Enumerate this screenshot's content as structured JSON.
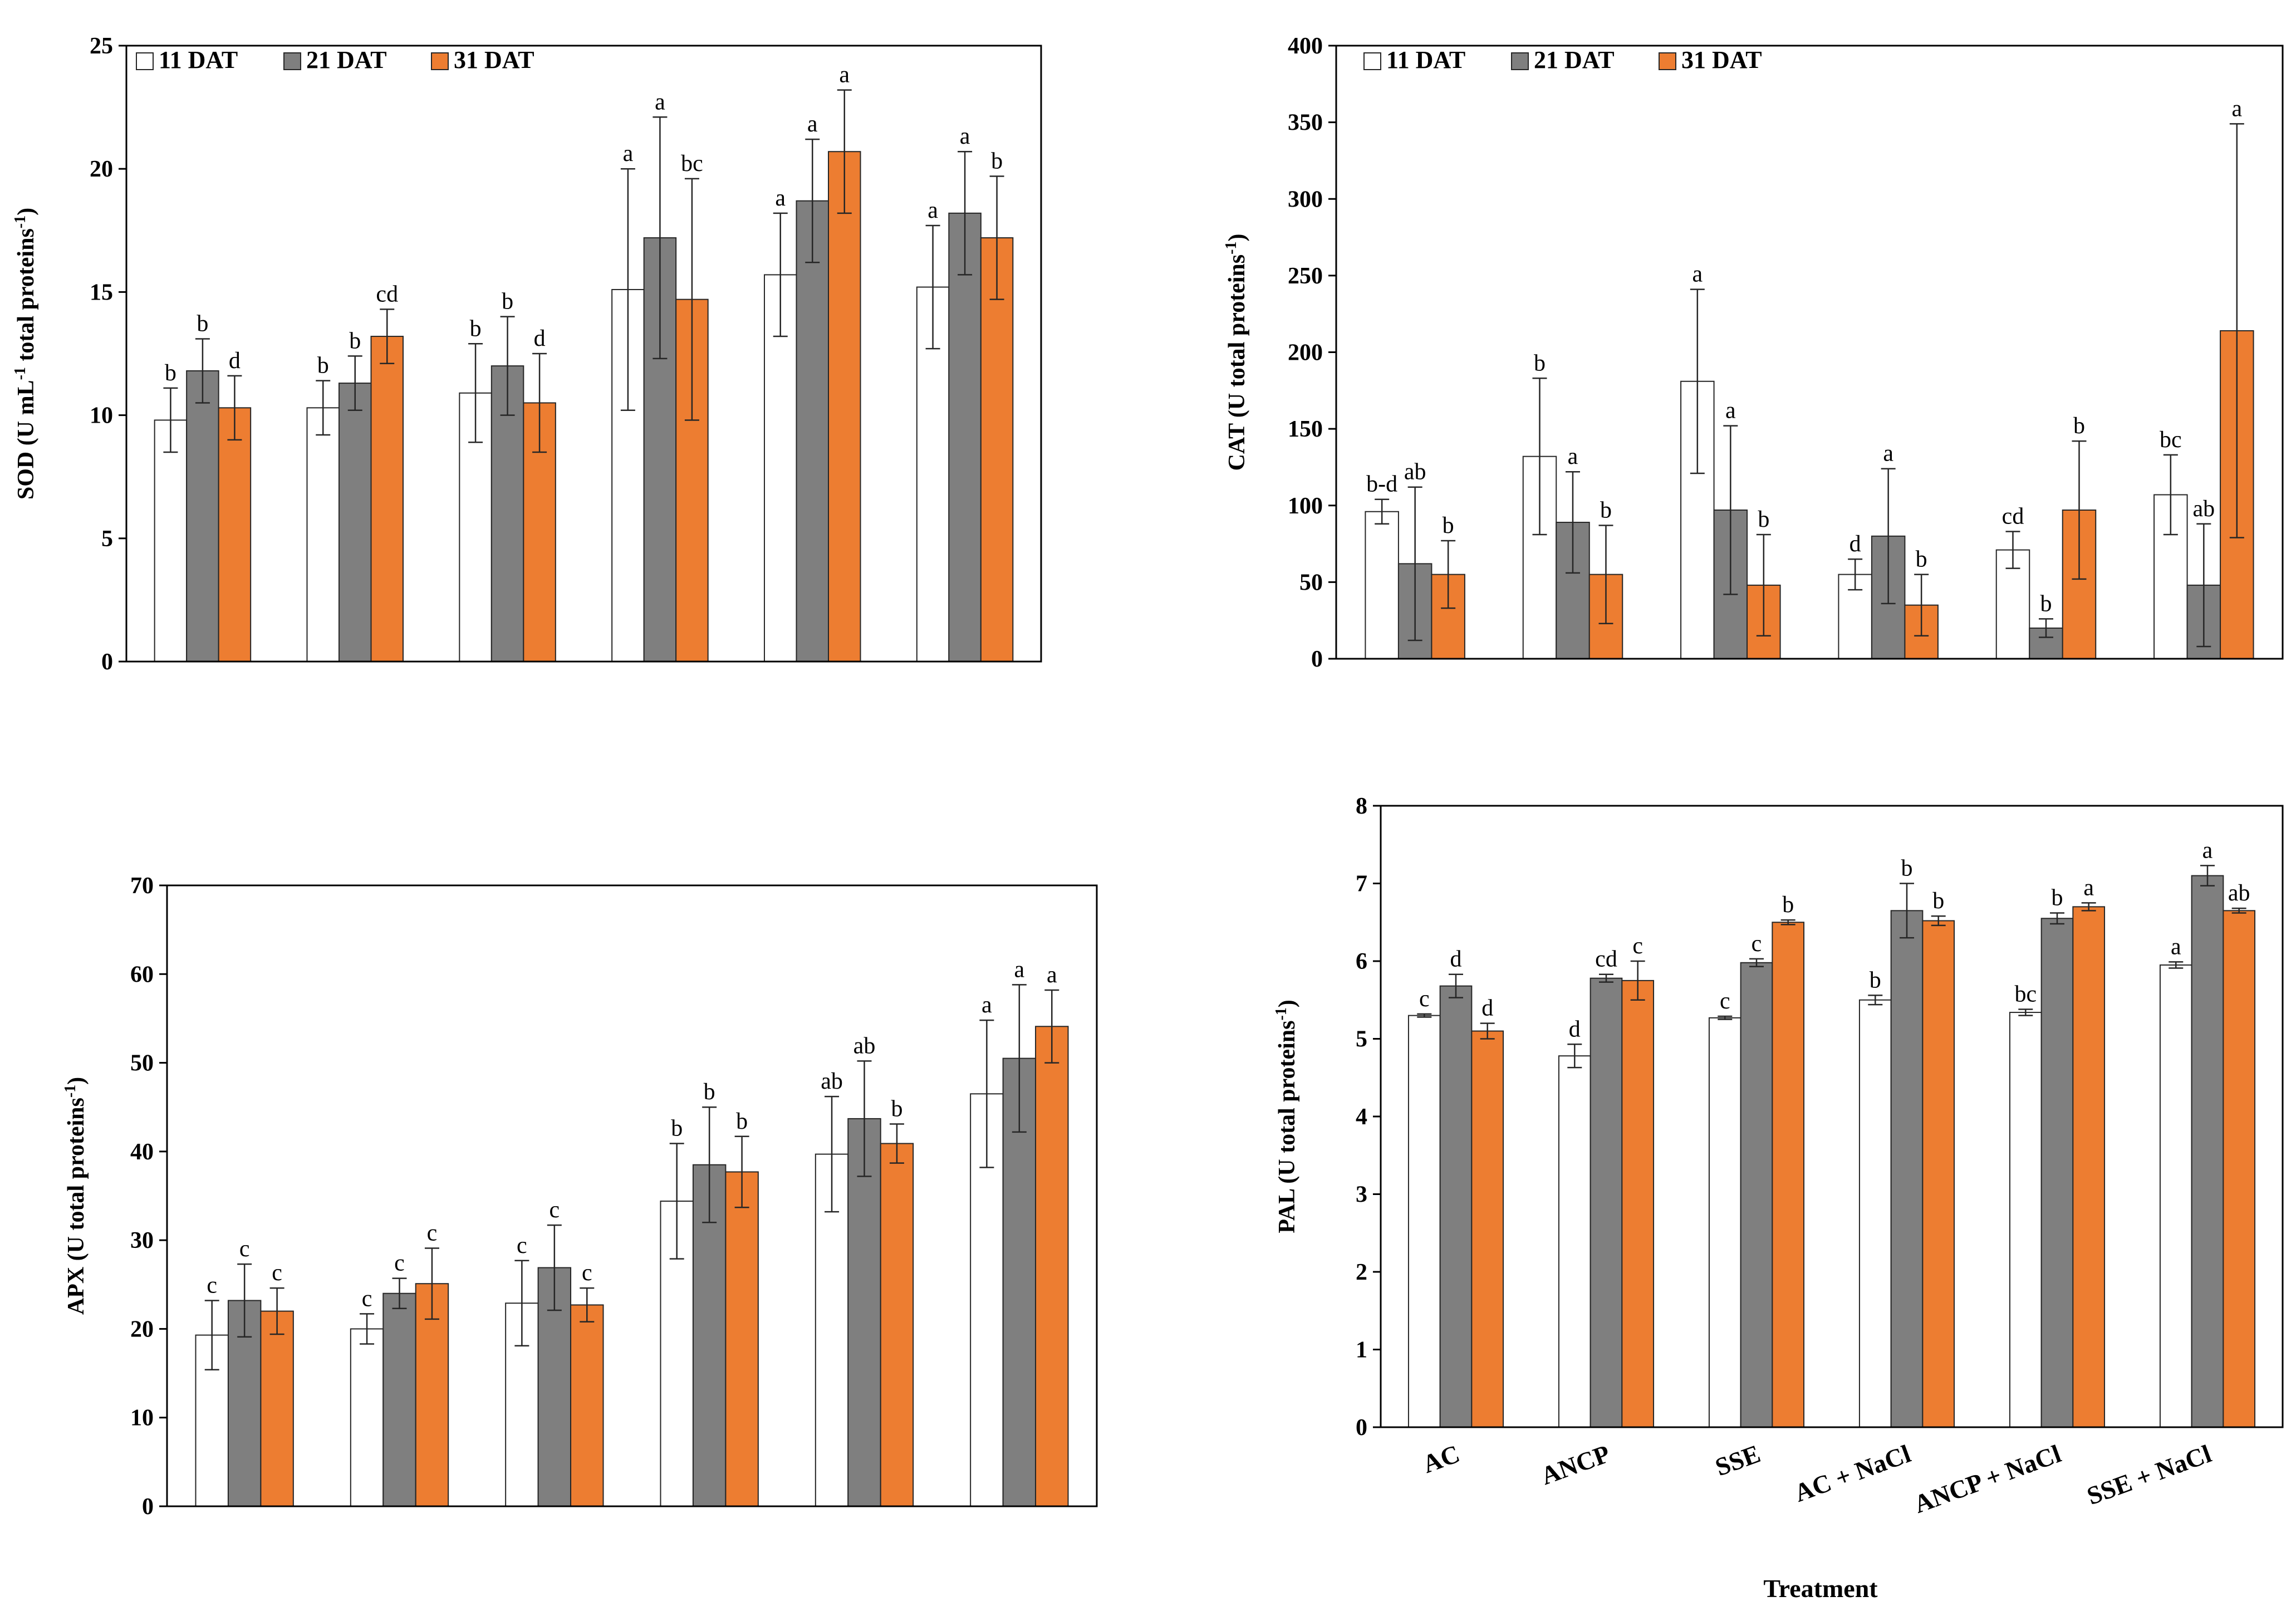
{
  "colors": {
    "s11": "#ffffff",
    "s21": "#7f7f7f",
    "s31": "#ed7d31",
    "axis": "#000000",
    "edge": "#262626"
  },
  "x_title": "Treatment",
  "categories": [
    "AC",
    "ANCP",
    "SSE",
    "AC + NaCl",
    "ANCP + NaCl",
    "SSE + NaCl"
  ],
  "chart_data": [
    {
      "id": "sod",
      "type": "bar",
      "ylabel": "SOD (U mL-1 total proteins-1)",
      "ylabel_parts": [
        "SOD (U mL",
        "-1",
        " total proteins",
        "-1",
        ")"
      ],
      "ylim": [
        0,
        25
      ],
      "yticks": [
        0,
        5,
        10,
        15,
        20,
        25
      ],
      "legend": [
        "11 DAT",
        "21 DAT",
        "31 DAT"
      ],
      "legend_position": "top-left",
      "series": [
        {
          "name": "11 DAT",
          "values": [
            9.8,
            10.3,
            10.9,
            15.1,
            15.7,
            15.2
          ],
          "errors": [
            1.3,
            1.1,
            2.0,
            4.9,
            2.5,
            2.5
          ],
          "letters": [
            "b",
            "b",
            "b",
            "a",
            "a",
            "a"
          ]
        },
        {
          "name": "21 DAT",
          "values": [
            11.8,
            11.3,
            12.0,
            17.2,
            18.7,
            18.2
          ],
          "errors": [
            1.3,
            1.1,
            2.0,
            4.9,
            2.5,
            2.5
          ],
          "letters": [
            "b",
            "b",
            "b",
            "a",
            "a",
            "a"
          ]
        },
        {
          "name": "31 DAT",
          "values": [
            10.3,
            13.2,
            10.5,
            14.7,
            20.7,
            17.2
          ],
          "errors": [
            1.3,
            1.1,
            2.0,
            4.9,
            2.5,
            2.5
          ],
          "letters": [
            "d",
            "cd",
            "d",
            "bc",
            "a",
            "b"
          ]
        }
      ]
    },
    {
      "id": "cat",
      "type": "bar",
      "ylabel": "CAT (U total proteins-1)",
      "ylabel_parts": [
        "CAT (U total proteins",
        "-1",
        ")"
      ],
      "ylim": [
        0,
        400
      ],
      "yticks": [
        0,
        50,
        100,
        150,
        200,
        250,
        300,
        350,
        400
      ],
      "legend": [
        "11 DAT",
        "21 DAT",
        "31 DAT"
      ],
      "legend_position": "top-left",
      "series": [
        {
          "name": "11 DAT",
          "values": [
            96,
            132,
            181,
            55,
            71,
            107
          ],
          "errors": [
            8,
            51,
            60,
            10,
            12,
            26
          ],
          "letters": [
            "b-d",
            "b",
            "a",
            "d",
            "cd",
            "bc"
          ]
        },
        {
          "name": "21 DAT",
          "values": [
            62,
            89,
            97,
            80,
            20,
            48
          ],
          "errors": [
            50,
            33,
            55,
            44,
            6,
            40
          ],
          "letters": [
            "ab",
            "a",
            "a",
            "a",
            "b",
            "ab"
          ]
        },
        {
          "name": "31 DAT",
          "values": [
            55,
            55,
            48,
            35,
            97,
            214
          ],
          "errors": [
            22,
            32,
            33,
            20,
            45,
            135
          ],
          "letters": [
            "b",
            "b",
            "b",
            "b",
            "b",
            "a"
          ]
        }
      ]
    },
    {
      "id": "apx",
      "type": "bar",
      "ylabel": "APX (U total proteins-1)",
      "ylabel_parts": [
        "APX (U total proteins",
        "-1",
        ")"
      ],
      "ylim": [
        0,
        70
      ],
      "yticks": [
        0,
        10,
        20,
        30,
        40,
        50,
        60,
        70
      ],
      "legend": [],
      "series": [
        {
          "name": "11 DAT",
          "values": [
            19.3,
            20.0,
            22.9,
            34.4,
            39.7,
            46.5
          ],
          "errors": [
            3.9,
            1.7,
            4.8,
            6.5,
            6.5,
            8.3
          ],
          "letters": [
            "c",
            "c",
            "c",
            "b",
            "ab",
            "a"
          ]
        },
        {
          "name": "21 DAT",
          "values": [
            23.2,
            24.0,
            26.9,
            38.5,
            43.7,
            50.5
          ],
          "errors": [
            4.1,
            1.7,
            4.8,
            6.5,
            6.5,
            8.3
          ],
          "letters": [
            "c",
            "c",
            "c",
            "b",
            "ab",
            "a"
          ]
        },
        {
          "name": "31 DAT",
          "values": [
            22.0,
            25.1,
            22.7,
            37.7,
            40.9,
            54.1
          ],
          "errors": [
            2.6,
            4.0,
            1.9,
            4.0,
            2.2,
            4.1
          ],
          "letters": [
            "c",
            "c",
            "c",
            "b",
            "b",
            "a"
          ]
        }
      ]
    },
    {
      "id": "pal",
      "type": "bar",
      "ylabel": "PAL (U total proteins-1)",
      "ylabel_parts": [
        "PAL (U total proteins",
        "-1",
        ")"
      ],
      "ylim": [
        0,
        8
      ],
      "yticks": [
        0,
        1,
        2,
        3,
        4,
        5,
        6,
        7,
        8
      ],
      "legend": [],
      "xlabel": "Treatment",
      "series": [
        {
          "name": "11 DAT",
          "values": [
            5.3,
            4.78,
            5.27,
            5.5,
            5.34,
            5.95
          ],
          "errors": [
            0.02,
            0.15,
            0.02,
            0.06,
            0.04,
            0.04
          ],
          "letters": [
            "c",
            "d",
            "c",
            "b",
            "bc",
            "a"
          ]
        },
        {
          "name": "21 DAT",
          "values": [
            5.68,
            5.78,
            5.98,
            6.65,
            6.55,
            7.1
          ],
          "errors": [
            0.15,
            0.05,
            0.05,
            0.35,
            0.07,
            0.13
          ],
          "letters": [
            "d",
            "cd",
            "c",
            "b",
            "b",
            "a"
          ]
        },
        {
          "name": "31 DAT",
          "values": [
            5.1,
            5.75,
            6.5,
            6.52,
            6.7,
            6.65
          ],
          "errors": [
            0.1,
            0.25,
            0.03,
            0.06,
            0.05,
            0.03
          ],
          "letters": [
            "d",
            "c",
            "b",
            "b",
            "a",
            "ab"
          ]
        }
      ]
    }
  ]
}
